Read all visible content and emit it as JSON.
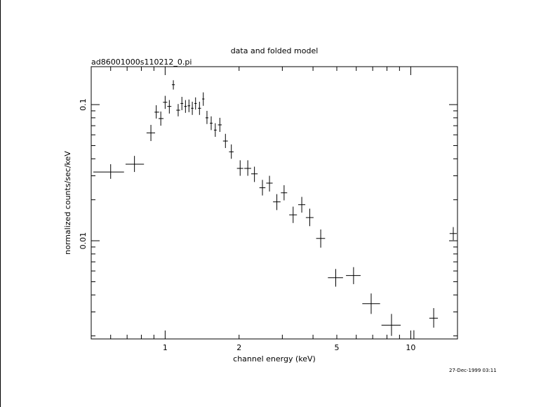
{
  "chart_data": {
    "type": "scatter",
    "title": "data and folded model",
    "subtitle": "ad86001000s110212_0.pi",
    "xlabel": "channel energy (keV)",
    "ylabel": "normalized counts/sec/keV",
    "xscale": "log",
    "yscale": "log",
    "xlim": [
      0.5,
      15.5
    ],
    "ylim": [
      0.0019,
      0.19
    ],
    "x_tick_labels": [
      {
        "v": 1,
        "label": "1"
      },
      {
        "v": 2,
        "label": "2"
      },
      {
        "v": 5,
        "label": "5"
      },
      {
        "v": 10,
        "label": "10"
      }
    ],
    "y_tick_labels": [
      {
        "v": 0.1,
        "label": "0.1"
      },
      {
        "v": 0.01,
        "label": "0.01"
      }
    ],
    "grid": false,
    "series": [
      {
        "marker": "crosshair with error bars",
        "points": [
          {
            "x": 0.6,
            "y": 0.032,
            "xlo": 0.51,
            "xhi": 0.68,
            "ylo": 0.0285,
            "yhi": 0.0365
          },
          {
            "x": 0.75,
            "y": 0.0365,
            "xlo": 0.69,
            "xhi": 0.82,
            "ylo": 0.032,
            "yhi": 0.042
          },
          {
            "x": 0.875,
            "y": 0.062,
            "xlo": 0.84,
            "xhi": 0.91,
            "ylo": 0.054,
            "yhi": 0.071
          },
          {
            "x": 0.92,
            "y": 0.088,
            "xlo": 0.905,
            "xhi": 0.945,
            "ylo": 0.079,
            "yhi": 0.099
          },
          {
            "x": 0.96,
            "y": 0.079,
            "xlo": 0.94,
            "xhi": 0.985,
            "ylo": 0.07,
            "yhi": 0.089
          },
          {
            "x": 1.0,
            "y": 0.104,
            "xlo": 0.98,
            "xhi": 1.02,
            "ylo": 0.093,
            "yhi": 0.116
          },
          {
            "x": 1.04,
            "y": 0.097,
            "xlo": 1.02,
            "xhi": 1.06,
            "ylo": 0.086,
            "yhi": 0.108
          },
          {
            "x": 1.08,
            "y": 0.14,
            "xlo": 1.065,
            "xhi": 1.095,
            "ylo": 0.129,
            "yhi": 0.151
          },
          {
            "x": 1.13,
            "y": 0.091,
            "xlo": 1.11,
            "xhi": 1.15,
            "ylo": 0.082,
            "yhi": 0.101
          },
          {
            "x": 1.17,
            "y": 0.102,
            "xlo": 1.155,
            "xhi": 1.185,
            "ylo": 0.091,
            "yhi": 0.114
          },
          {
            "x": 1.21,
            "y": 0.097,
            "xlo": 1.195,
            "xhi": 1.225,
            "ylo": 0.087,
            "yhi": 0.108
          },
          {
            "x": 1.25,
            "y": 0.098,
            "xlo": 1.235,
            "xhi": 1.265,
            "ylo": 0.088,
            "yhi": 0.109
          },
          {
            "x": 1.29,
            "y": 0.094,
            "xlo": 1.275,
            "xhi": 1.305,
            "ylo": 0.084,
            "yhi": 0.105
          },
          {
            "x": 1.33,
            "y": 0.102,
            "xlo": 1.315,
            "xhi": 1.345,
            "ylo": 0.092,
            "yhi": 0.113
          },
          {
            "x": 1.38,
            "y": 0.094,
            "xlo": 1.36,
            "xhi": 1.4,
            "ylo": 0.084,
            "yhi": 0.105
          },
          {
            "x": 1.43,
            "y": 0.11,
            "xlo": 1.415,
            "xhi": 1.445,
            "ylo": 0.098,
            "yhi": 0.123
          },
          {
            "x": 1.48,
            "y": 0.08,
            "xlo": 1.46,
            "xhi": 1.5,
            "ylo": 0.072,
            "yhi": 0.09
          },
          {
            "x": 1.54,
            "y": 0.073,
            "xlo": 1.52,
            "xhi": 1.56,
            "ylo": 0.065,
            "yhi": 0.082
          },
          {
            "x": 1.6,
            "y": 0.065,
            "xlo": 1.58,
            "xhi": 1.62,
            "ylo": 0.058,
            "yhi": 0.073
          },
          {
            "x": 1.67,
            "y": 0.071,
            "xlo": 1.64,
            "xhi": 1.7,
            "ylo": 0.063,
            "yhi": 0.08
          },
          {
            "x": 1.76,
            "y": 0.054,
            "xlo": 1.72,
            "xhi": 1.8,
            "ylo": 0.048,
            "yhi": 0.061
          },
          {
            "x": 1.86,
            "y": 0.045,
            "xlo": 1.82,
            "xhi": 1.9,
            "ylo": 0.04,
            "yhi": 0.051
          },
          {
            "x": 2.02,
            "y": 0.034,
            "xlo": 1.96,
            "xhi": 2.08,
            "ylo": 0.03,
            "yhi": 0.039
          },
          {
            "x": 2.17,
            "y": 0.034,
            "xlo": 2.1,
            "xhi": 2.24,
            "ylo": 0.03,
            "yhi": 0.039
          },
          {
            "x": 2.31,
            "y": 0.031,
            "xlo": 2.24,
            "xhi": 2.38,
            "ylo": 0.027,
            "yhi": 0.035
          },
          {
            "x": 2.49,
            "y": 0.0245,
            "xlo": 2.42,
            "xhi": 2.56,
            "ylo": 0.0215,
            "yhi": 0.028
          },
          {
            "x": 2.66,
            "y": 0.0265,
            "xlo": 2.58,
            "xhi": 2.74,
            "ylo": 0.023,
            "yhi": 0.03
          },
          {
            "x": 2.85,
            "y": 0.0193,
            "xlo": 2.75,
            "xhi": 2.95,
            "ylo": 0.0168,
            "yhi": 0.022
          },
          {
            "x": 3.05,
            "y": 0.0225,
            "xlo": 2.96,
            "xhi": 3.14,
            "ylo": 0.0198,
            "yhi": 0.0256
          },
          {
            "x": 3.32,
            "y": 0.0155,
            "xlo": 3.2,
            "xhi": 3.44,
            "ylo": 0.0135,
            "yhi": 0.0178
          },
          {
            "x": 3.6,
            "y": 0.0184,
            "xlo": 3.48,
            "xhi": 3.72,
            "ylo": 0.0161,
            "yhi": 0.021
          },
          {
            "x": 3.88,
            "y": 0.0148,
            "xlo": 3.74,
            "xhi": 4.02,
            "ylo": 0.0128,
            "yhi": 0.0172
          },
          {
            "x": 4.3,
            "y": 0.0104,
            "xlo": 4.12,
            "xhi": 4.48,
            "ylo": 0.0089,
            "yhi": 0.0121
          },
          {
            "x": 4.95,
            "y": 0.00535,
            "xlo": 4.6,
            "xhi": 5.3,
            "ylo": 0.0046,
            "yhi": 0.0062
          },
          {
            "x": 5.85,
            "y": 0.00555,
            "xlo": 5.45,
            "xhi": 6.25,
            "ylo": 0.0048,
            "yhi": 0.0064
          },
          {
            "x": 6.9,
            "y": 0.00345,
            "xlo": 6.35,
            "xhi": 7.5,
            "ylo": 0.0029,
            "yhi": 0.0041
          },
          {
            "x": 8.35,
            "y": 0.0024,
            "xlo": 7.6,
            "xhi": 9.1,
            "ylo": 0.002,
            "yhi": 0.0029
          },
          {
            "x": 10.3,
            "y": 0.0019,
            "xlo": 9.3,
            "xhi": 11.3,
            "ylo": 0.00165,
            "yhi": 0.0022
          },
          {
            "x": 12.4,
            "y": 0.0027,
            "xlo": 11.9,
            "xhi": 12.9,
            "ylo": 0.0023,
            "yhi": 0.0032
          },
          {
            "x": 14.9,
            "y": 0.0113,
            "xlo": 14.4,
            "xhi": 15.4,
            "ylo": 0.0101,
            "yhi": 0.0126
          }
        ]
      }
    ]
  },
  "footer": {
    "timestamp": "27-Dec-1999 03:11"
  }
}
